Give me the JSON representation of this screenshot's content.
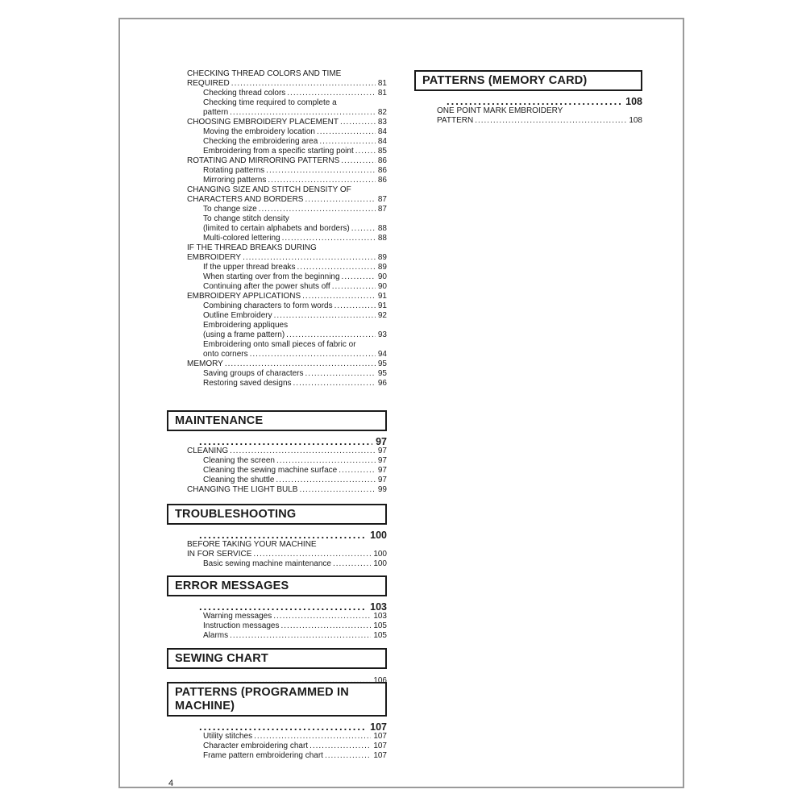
{
  "document": {
    "page_number": "4"
  },
  "toc": {
    "top_entries": [
      {
        "level": 1,
        "lines": [
          "CHECKING THREAD COLORS AND TIME",
          "REQUIRED"
        ],
        "page": "81"
      },
      {
        "level": 2,
        "lines": [
          "Checking thread colors"
        ],
        "page": "81"
      },
      {
        "level": 2,
        "lines": [
          "Checking time required to complete a",
          "pattern"
        ],
        "page": "82"
      },
      {
        "level": 1,
        "lines": [
          "CHOOSING EMBROIDERY PLACEMENT"
        ],
        "page": "83"
      },
      {
        "level": 2,
        "lines": [
          "Moving the embroidery location"
        ],
        "page": "84"
      },
      {
        "level": 2,
        "lines": [
          "Checking the embroidering area"
        ],
        "page": "84"
      },
      {
        "level": 2,
        "lines": [
          "Embroidering from a specific starting point"
        ],
        "page": "85"
      },
      {
        "level": 1,
        "lines": [
          "ROTATING AND MIRRORING PATTERNS"
        ],
        "page": "86"
      },
      {
        "level": 2,
        "lines": [
          "Rotating patterns"
        ],
        "page": "86"
      },
      {
        "level": 2,
        "lines": [
          "Mirroring patterns"
        ],
        "page": "86"
      },
      {
        "level": 1,
        "lines": [
          "CHANGING SIZE AND STITCH DENSITY OF",
          "CHARACTERS AND BORDERS"
        ],
        "page": "87"
      },
      {
        "level": 2,
        "lines": [
          "To change size"
        ],
        "page": "87"
      },
      {
        "level": 2,
        "lines": [
          "To change stitch density",
          "(limited to certain alphabets and borders)"
        ],
        "page": "88"
      },
      {
        "level": 2,
        "lines": [
          "Multi-colored lettering"
        ],
        "page": "88"
      },
      {
        "level": 1,
        "lines": [
          "IF THE THREAD BREAKS DURING",
          "EMBROIDERY"
        ],
        "page": "89"
      },
      {
        "level": 2,
        "lines": [
          "If the upper thread breaks"
        ],
        "page": "89"
      },
      {
        "level": 2,
        "lines": [
          "When starting over from the beginning"
        ],
        "page": "90"
      },
      {
        "level": 2,
        "lines": [
          "Continuing after the power shuts off"
        ],
        "page": "90"
      },
      {
        "level": 1,
        "lines": [
          "EMBROIDERY APPLICATIONS"
        ],
        "page": "91"
      },
      {
        "level": 2,
        "lines": [
          "Combining characters to form words"
        ],
        "page": "91"
      },
      {
        "level": 2,
        "lines": [
          "Outline Embroidery"
        ],
        "page": "92"
      },
      {
        "level": 2,
        "lines": [
          "Embroidering appliques",
          "(using a frame pattern)"
        ],
        "page": "93"
      },
      {
        "level": 2,
        "lines": [
          "Embroidering onto small pieces of fabric or",
          "onto corners"
        ],
        "page": "94"
      },
      {
        "level": 1,
        "lines": [
          "MEMORY"
        ],
        "page": "95"
      },
      {
        "level": 2,
        "lines": [
          "Saving groups of characters"
        ],
        "page": "95"
      },
      {
        "level": 2,
        "lines": [
          "Restoring saved designs"
        ],
        "page": "96"
      }
    ],
    "left_sections": [
      {
        "title": "MAINTENANCE",
        "page": "97",
        "entries": [
          {
            "level": 1,
            "lines": [
              "CLEANING"
            ],
            "page": "97"
          },
          {
            "level": 2,
            "lines": [
              "Cleaning the screen"
            ],
            "page": "97"
          },
          {
            "level": 2,
            "lines": [
              "Cleaning the sewing machine surface"
            ],
            "page": "97"
          },
          {
            "level": 2,
            "lines": [
              "Cleaning the shuttle"
            ],
            "page": "97"
          },
          {
            "level": 1,
            "lines": [
              "CHANGING THE LIGHT BULB"
            ],
            "page": "99"
          }
        ]
      },
      {
        "title": "TROUBLESHOOTING",
        "page": "100",
        "entries": [
          {
            "level": 1,
            "lines": [
              "BEFORE TAKING YOUR MACHINE",
              "IN FOR SERVICE"
            ],
            "page": "100"
          },
          {
            "level": 2,
            "lines": [
              "Basic sewing machine maintenance"
            ],
            "page": "100"
          }
        ]
      },
      {
        "title": "ERROR MESSAGES",
        "page": "103",
        "entries": [
          {
            "level": 2,
            "lines": [
              "Warning messages"
            ],
            "page": "103"
          },
          {
            "level": 2,
            "lines": [
              "Instruction messages"
            ],
            "page": "105"
          },
          {
            "level": 2,
            "lines": [
              "Alarms"
            ],
            "page": "105"
          }
        ]
      },
      {
        "title": "SEWING CHART",
        "page": "106",
        "entries": []
      },
      {
        "title": "PATTERNS (PROGRAMMED IN MACHINE)",
        "page": "107",
        "entries": [
          {
            "level": 2,
            "lines": [
              "Utility stitches"
            ],
            "page": "107"
          },
          {
            "level": 2,
            "lines": [
              "Character embroidering chart"
            ],
            "page": "107"
          },
          {
            "level": 2,
            "lines": [
              "Frame pattern embroidering chart"
            ],
            "page": "107"
          }
        ]
      }
    ],
    "right_sections": [
      {
        "title": "PATTERNS (MEMORY CARD)",
        "page": "108",
        "entries": [
          {
            "level": 1,
            "lines": [
              "ONE POINT MARK EMBROIDERY",
              "PATTERN"
            ],
            "page": "108"
          }
        ]
      }
    ]
  }
}
